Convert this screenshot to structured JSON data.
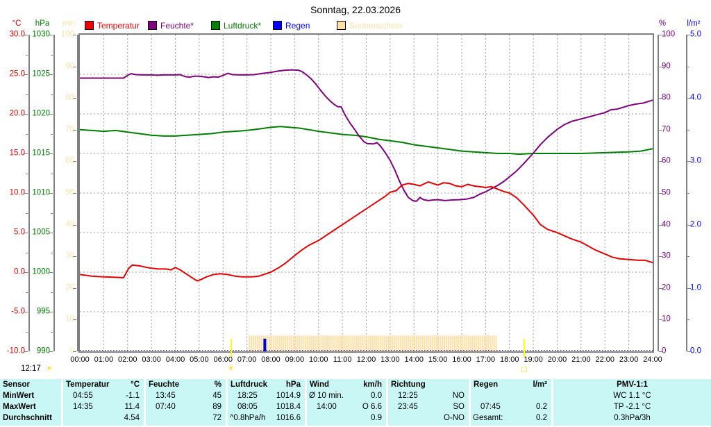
{
  "title": "Sonntag, 22.03.2026",
  "legend": {
    "items": [
      {
        "label": "Temperatur",
        "color": "#f00000"
      },
      {
        "label": "Feuchte*",
        "color": "#800080"
      },
      {
        "label": "Luftdruck*",
        "color": "#008000"
      },
      {
        "label": "Regen",
        "color": "#0000ff"
      },
      {
        "label": "Sonnenschein",
        "color": "#ffdfa3"
      }
    ]
  },
  "axes": {
    "left": [
      {
        "unit": "°C",
        "color": "#e00000",
        "labels": [
          "30.0",
          "25.0",
          "20.0",
          "15.0",
          "10.0",
          "5.0",
          "0.0",
          "-5.0",
          "-10.0"
        ]
      },
      {
        "unit": "hPa",
        "color": "#008000",
        "labels": [
          "1030",
          "1025",
          "1020",
          "1015",
          "1010",
          "1005",
          "1000",
          "995",
          "990"
        ]
      },
      {
        "unit": "min",
        "color": "#ffe1a6",
        "labels": [
          "100",
          "90",
          "80",
          "70",
          "60",
          "50",
          "40",
          "30",
          "20",
          "10",
          "0"
        ]
      }
    ],
    "right": [
      {
        "unit": "%",
        "color": "#800080",
        "labels": [
          "100",
          "90",
          "80",
          "70",
          "60",
          "50",
          "40",
          "30",
          "20",
          "10",
          "0"
        ]
      },
      {
        "unit": "l/m²",
        "color": "#0000ff",
        "labels": [
          "5.0",
          "4.0",
          "3.0",
          "2.0",
          "1.0",
          "0.0"
        ]
      }
    ]
  },
  "x_labels": [
    "00:00",
    "01:00",
    "02:00",
    "03:00",
    "04:00",
    "05:00",
    "06:00",
    "07:00",
    "08:00",
    "09:00",
    "10:00",
    "11:00",
    "12:00",
    "13:00",
    "14:00",
    "15:00",
    "16:00",
    "17:00",
    "18:00",
    "19:00",
    "20:00",
    "21:00",
    "22:00",
    "23:00",
    "24:00"
  ],
  "sun_info": {
    "day_length": "12:17",
    "sun_icon": "☀",
    "sunset_icon": "open-square"
  },
  "chart_data": {
    "type": "line",
    "title": "Sonntag, 22.03.2026",
    "x_unit": "hour",
    "x_range": [
      0,
      24
    ],
    "grid": {
      "v_every_h": 1,
      "h_every_pct": 12.5
    },
    "series": [
      {
        "name": "Temperatur",
        "unit": "°C",
        "color": "#e80000",
        "axis_min": -10,
        "axis_max": 30,
        "points": [
          [
            0,
            -0.3
          ],
          [
            0.5,
            -0.5
          ],
          [
            1,
            -0.6
          ],
          [
            1.5,
            -0.65
          ],
          [
            1.83,
            -0.7
          ],
          [
            2.05,
            0.5
          ],
          [
            2.2,
            0.9
          ],
          [
            2.5,
            0.8
          ],
          [
            2.8,
            0.6
          ],
          [
            3,
            0.5
          ],
          [
            3.3,
            0.4
          ],
          [
            3.6,
            0.4
          ],
          [
            3.83,
            0.3
          ],
          [
            4.0,
            0.6
          ],
          [
            4.2,
            0.3
          ],
          [
            4.5,
            -0.3
          ],
          [
            4.75,
            -0.8
          ],
          [
            4.92,
            -1.1
          ],
          [
            5.1,
            -0.9
          ],
          [
            5.3,
            -0.6
          ],
          [
            5.6,
            -0.3
          ],
          [
            5.9,
            -0.2
          ],
          [
            6.2,
            -0.3
          ],
          [
            6.5,
            -0.5
          ],
          [
            6.8,
            -0.6
          ],
          [
            7.2,
            -0.6
          ],
          [
            7.5,
            -0.5
          ],
          [
            7.8,
            -0.2
          ],
          [
            8,
            0.0
          ],
          [
            8.3,
            0.5
          ],
          [
            8.6,
            1.1
          ],
          [
            9,
            2.1
          ],
          [
            9.3,
            2.8
          ],
          [
            9.6,
            3.4
          ],
          [
            10,
            4.0
          ],
          [
            10.5,
            5.0
          ],
          [
            11,
            6.0
          ],
          [
            11.5,
            7.0
          ],
          [
            12,
            8.0
          ],
          [
            12.4,
            8.8
          ],
          [
            12.8,
            9.6
          ],
          [
            13,
            10.1
          ],
          [
            13.25,
            10.3
          ],
          [
            13.5,
            11.0
          ],
          [
            13.75,
            11.2
          ],
          [
            14,
            11.1
          ],
          [
            14.25,
            10.9
          ],
          [
            14.6,
            11.4
          ],
          [
            14.8,
            11.2
          ],
          [
            15,
            11.0
          ],
          [
            15.25,
            11.3
          ],
          [
            15.5,
            11.2
          ],
          [
            15.75,
            10.9
          ],
          [
            16,
            10.8
          ],
          [
            16.25,
            11.1
          ],
          [
            16.5,
            10.9
          ],
          [
            16.75,
            10.8
          ],
          [
            17,
            10.7
          ],
          [
            17.25,
            10.8
          ],
          [
            17.5,
            10.5
          ],
          [
            17.75,
            10.2
          ],
          [
            18,
            10.0
          ],
          [
            18.3,
            9.4
          ],
          [
            18.6,
            8.5
          ],
          [
            19,
            7.2
          ],
          [
            19.3,
            6.0
          ],
          [
            19.6,
            5.4
          ],
          [
            20,
            5.0
          ],
          [
            20.3,
            4.6
          ],
          [
            20.6,
            4.2
          ],
          [
            21,
            3.8
          ],
          [
            21.3,
            3.3
          ],
          [
            21.6,
            2.8
          ],
          [
            22,
            2.3
          ],
          [
            22.3,
            1.9
          ],
          [
            22.6,
            1.7
          ],
          [
            23,
            1.6
          ],
          [
            23.4,
            1.5
          ],
          [
            23.7,
            1.5
          ],
          [
            24,
            1.2
          ]
        ]
      },
      {
        "name": "Feuchte",
        "unit": "%",
        "color": "#800080",
        "axis_min": 0,
        "axis_max": 100,
        "points": [
          [
            0,
            86.3
          ],
          [
            0.5,
            86.3
          ],
          [
            1,
            86.3
          ],
          [
            1.5,
            86.3
          ],
          [
            1.83,
            86.3
          ],
          [
            2,
            87.2
          ],
          [
            2.15,
            87.7
          ],
          [
            2.35,
            87.4
          ],
          [
            2.6,
            87.3
          ],
          [
            3,
            87.3
          ],
          [
            3.25,
            87.2
          ],
          [
            3.5,
            87.3
          ],
          [
            3.75,
            87.3
          ],
          [
            4,
            87.3
          ],
          [
            4.2,
            87.4
          ],
          [
            4.4,
            86.8
          ],
          [
            4.6,
            86.6
          ],
          [
            4.8,
            86.9
          ],
          [
            5,
            86.9
          ],
          [
            5.2,
            86.7
          ],
          [
            5.4,
            86.5
          ],
          [
            5.6,
            86.7
          ],
          [
            5.8,
            86.6
          ],
          [
            6.05,
            87.3
          ],
          [
            6.2,
            87.8
          ],
          [
            6.4,
            87.4
          ],
          [
            6.7,
            87.3
          ],
          [
            7,
            87.3
          ],
          [
            7.3,
            87.4
          ],
          [
            7.67,
            87.8
          ],
          [
            8,
            88.1
          ],
          [
            8.3,
            88.5
          ],
          [
            8.6,
            88.8
          ],
          [
            8.9,
            88.9
          ],
          [
            9.15,
            88.8
          ],
          [
            9.3,
            88.4
          ],
          [
            9.5,
            87.3
          ],
          [
            9.7,
            86.0
          ],
          [
            9.9,
            84.3
          ],
          [
            10.1,
            82.3
          ],
          [
            10.3,
            80.5
          ],
          [
            10.5,
            79.0
          ],
          [
            10.65,
            78.0
          ],
          [
            10.8,
            77.3
          ],
          [
            10.95,
            77.2
          ],
          [
            11.1,
            74.8
          ],
          [
            11.3,
            72.3
          ],
          [
            11.5,
            70.2
          ],
          [
            11.7,
            68.0
          ],
          [
            11.9,
            66.2
          ],
          [
            12.05,
            65.6
          ],
          [
            12.3,
            65.5
          ],
          [
            12.45,
            65.9
          ],
          [
            12.6,
            64.8
          ],
          [
            12.8,
            62.7
          ],
          [
            13,
            60.3
          ],
          [
            13.2,
            57.2
          ],
          [
            13.4,
            53.6
          ],
          [
            13.6,
            50.6
          ],
          [
            13.75,
            48.7
          ],
          [
            13.95,
            47.6
          ],
          [
            14.1,
            47.4
          ],
          [
            14.25,
            48.6
          ],
          [
            14.4,
            47.9
          ],
          [
            14.6,
            47.6
          ],
          [
            14.8,
            47.8
          ],
          [
            15,
            47.9
          ],
          [
            15.3,
            47.6
          ],
          [
            15.6,
            47.8
          ],
          [
            15.9,
            47.9
          ],
          [
            16.2,
            48.1
          ],
          [
            16.5,
            48.6
          ],
          [
            16.75,
            49.6
          ],
          [
            17,
            50.4
          ],
          [
            17.25,
            51.4
          ],
          [
            17.5,
            52.4
          ],
          [
            17.75,
            53.6
          ],
          [
            18,
            55.1
          ],
          [
            18.3,
            57.0
          ],
          [
            18.6,
            59.3
          ],
          [
            19,
            62.6
          ],
          [
            19.3,
            65.3
          ],
          [
            19.6,
            67.6
          ],
          [
            20,
            70.1
          ],
          [
            20.3,
            71.6
          ],
          [
            20.6,
            72.6
          ],
          [
            21,
            73.4
          ],
          [
            21.3,
            74.0
          ],
          [
            21.6,
            74.6
          ],
          [
            22,
            75.4
          ],
          [
            22.25,
            76.3
          ],
          [
            22.5,
            76.5
          ],
          [
            23,
            77.6
          ],
          [
            23.3,
            78.1
          ],
          [
            23.6,
            78.4
          ],
          [
            23.85,
            79.0
          ],
          [
            24,
            79.3
          ]
        ]
      },
      {
        "name": "Luftdruck",
        "unit": "hPa",
        "color": "#008000",
        "axis_min": 990,
        "axis_max": 1030,
        "points": [
          [
            0,
            1018.0
          ],
          [
            0.5,
            1017.9
          ],
          [
            1,
            1017.8
          ],
          [
            1.5,
            1017.9
          ],
          [
            2,
            1017.7
          ],
          [
            2.5,
            1017.5
          ],
          [
            3,
            1017.3
          ],
          [
            3.5,
            1017.2
          ],
          [
            4,
            1017.2
          ],
          [
            4.5,
            1017.3
          ],
          [
            5,
            1017.4
          ],
          [
            5.5,
            1017.5
          ],
          [
            6,
            1017.7
          ],
          [
            6.5,
            1017.8
          ],
          [
            7,
            1017.9
          ],
          [
            7.5,
            1018.1
          ],
          [
            8,
            1018.3
          ],
          [
            8.4,
            1018.4
          ],
          [
            8.8,
            1018.3
          ],
          [
            9.2,
            1018.2
          ],
          [
            9.6,
            1018.0
          ],
          [
            10,
            1017.8
          ],
          [
            10.5,
            1017.6
          ],
          [
            11,
            1017.4
          ],
          [
            11.5,
            1017.3
          ],
          [
            12,
            1017.1
          ],
          [
            12.5,
            1016.8
          ],
          [
            13,
            1016.6
          ],
          [
            13.5,
            1016.4
          ],
          [
            14,
            1016.1
          ],
          [
            14.5,
            1015.9
          ],
          [
            15,
            1015.7
          ],
          [
            15.5,
            1015.5
          ],
          [
            16,
            1015.3
          ],
          [
            16.5,
            1015.2
          ],
          [
            17,
            1015.1
          ],
          [
            17.5,
            1015.0
          ],
          [
            18,
            1015.0
          ],
          [
            18.4,
            1014.9
          ],
          [
            19,
            1015.0
          ],
          [
            20,
            1015.0
          ],
          [
            21,
            1015.0
          ],
          [
            22,
            1015.1
          ],
          [
            23,
            1015.2
          ],
          [
            23.5,
            1015.3
          ],
          [
            24,
            1015.6
          ]
        ]
      }
    ],
    "sunshine": {
      "name": "Sonnenschein",
      "unit": "min",
      "color": "#ffdfa3",
      "start_h": 7.08,
      "end_h": 17.45,
      "bar_value_min": 5,
      "axis_min": 0,
      "axis_max": 100
    },
    "rain": {
      "name": "Regen",
      "unit": "l/m²",
      "color": "#0000cc",
      "axis_min": 0,
      "axis_max": 5,
      "bars": [
        [
          7.75,
          0.2
        ]
      ],
      "baseline_color": "#0000bb"
    },
    "sun_markers": {
      "sunrise_h": 6.33,
      "sunset_h": 18.62,
      "color": "#ffff00"
    }
  },
  "table": {
    "row_labels": [
      "Sensor",
      "MinWert",
      "MaxWert",
      "Durchschnitt"
    ],
    "columns": [
      {
        "name": "Temperatur",
        "unit": "°C",
        "rows": [
          [
            "04:55",
            "-1.1"
          ],
          [
            "14:35",
            "11.4"
          ],
          [
            "",
            "4.54"
          ]
        ]
      },
      {
        "name": "Feuchte",
        "unit": "%",
        "rows": [
          [
            "13:45",
            "45"
          ],
          [
            "07:40",
            "89"
          ],
          [
            "",
            "72"
          ]
        ]
      },
      {
        "name": "Luftdruck",
        "unit": "hPa",
        "rows": [
          [
            "18:25",
            "1014.9"
          ],
          [
            "08:05",
            "1018.4"
          ],
          [
            "^0.8hPa/h",
            "1016.6"
          ]
        ]
      },
      {
        "name": "Wind",
        "unit": "km/h",
        "rows": [
          [
            "Ø 10 min.",
            "0.0"
          ],
          [
            "14:00",
            "O 6.6"
          ],
          [
            "",
            "0.9"
          ]
        ]
      },
      {
        "name": "Richtung",
        "unit": "",
        "rows": [
          [
            "12:25",
            "NO"
          ],
          [
            "23:45",
            "SO"
          ],
          [
            "",
            "O-NO"
          ]
        ]
      },
      {
        "name": "Regen",
        "unit": "l/m²",
        "rows": [
          [
            "",
            ""
          ],
          [
            "07:45",
            "0.2"
          ],
          [
            "Gesamt:",
            "0.2"
          ]
        ]
      }
    ],
    "pmv": {
      "title": "PMV-1:1",
      "lines": [
        "WC 1.1 °C",
        "TP -2.1 °C",
        "0.3hPa/3h"
      ]
    }
  }
}
